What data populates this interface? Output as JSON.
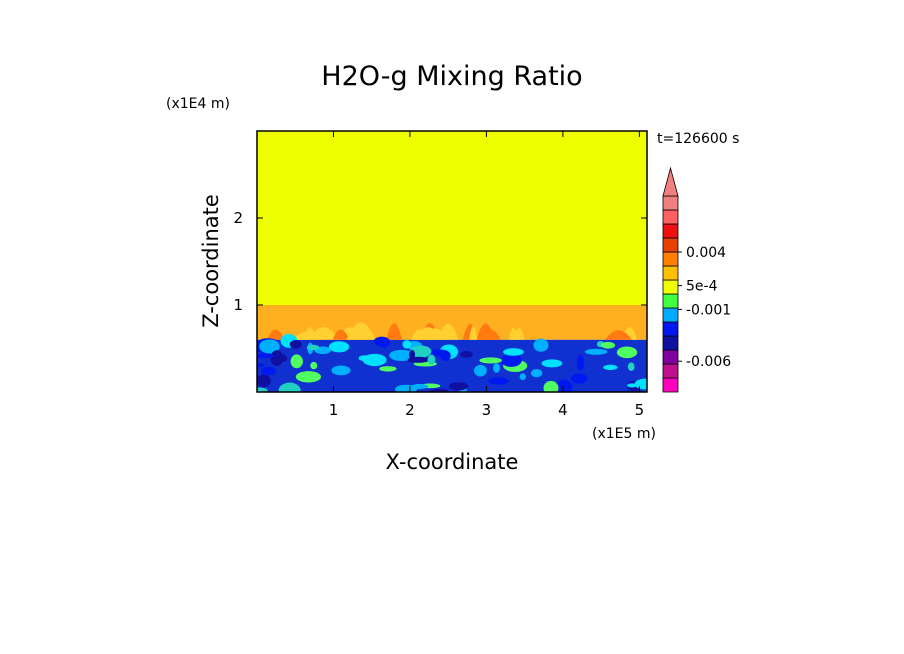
{
  "chart_data": {
    "type": "heatmap",
    "title": "H2O-g Mixing Ratio",
    "xlabel": "X-coordinate",
    "ylabel": "Z-coordinate",
    "x_unit": "(x1E5 m)",
    "y_unit": "(x1E4 m)",
    "time_label": "t=126600 s",
    "xlim": [
      0,
      5.1
    ],
    "ylim": [
      0,
      3
    ],
    "x_ticks": [
      {
        "value": 1,
        "label": "1"
      },
      {
        "value": 2,
        "label": "2"
      },
      {
        "value": 3,
        "label": "3"
      },
      {
        "value": 4,
        "label": "4"
      },
      {
        "value": 5,
        "label": "5"
      }
    ],
    "y_ticks": [
      {
        "value": 1,
        "label": "1"
      },
      {
        "value": 2,
        "label": "2"
      }
    ],
    "fill_regions": [
      {
        "name": "upper",
        "z_range": [
          1.0,
          3.0
        ],
        "color": "#f0ff00"
      },
      {
        "name": "transition",
        "z_range": [
          0.6,
          1.0
        ],
        "color": "#ffb020"
      },
      {
        "name": "lower",
        "z_range": [
          0.0,
          0.6
        ],
        "color": "#1030d0"
      }
    ],
    "colorbar": {
      "colors": [
        "#ff00c0",
        "#c01090",
        "#8000a0",
        "#1010a0",
        "#0018f0",
        "#00aaff",
        "#40ff40",
        "#f0ff00",
        "#ffc000",
        "#ff8000",
        "#e84000",
        "#ee1010",
        "#ff6060",
        "#f08080"
      ],
      "labels": [
        {
          "value": 0.004,
          "text": "0.004",
          "level": 10
        },
        {
          "value": 0.0005,
          "text": "5e-4",
          "level": 7.6
        },
        {
          "value": -0.001,
          "text": "-0.001",
          "level": 5.9
        },
        {
          "value": -0.006,
          "text": "-0.006",
          "level": 2.2
        }
      ]
    }
  }
}
